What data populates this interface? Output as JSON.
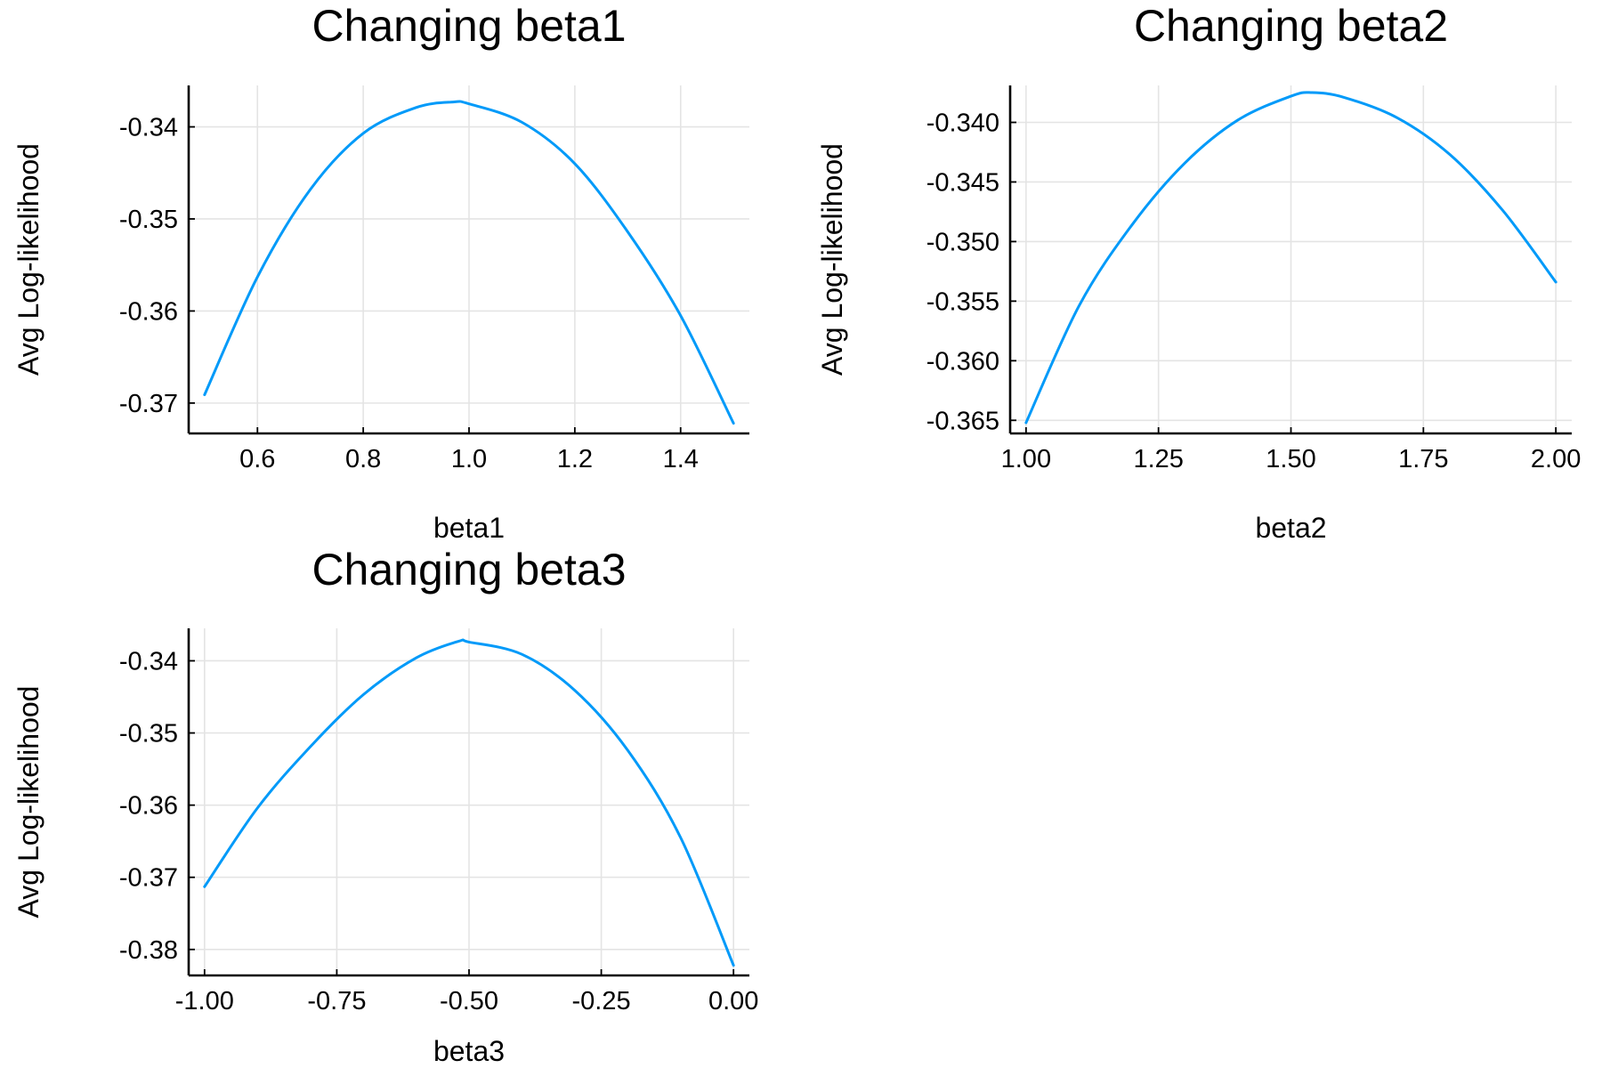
{
  "chart_data": [
    {
      "type": "line",
      "title": "Changing beta1",
      "xlabel": "beta1",
      "ylabel": "Avg Log-likelihood",
      "xlim": [
        0.47,
        1.53
      ],
      "ylim": [
        -0.3733,
        -0.3355
      ],
      "xticks": [
        0.6,
        0.8,
        1.0,
        1.2,
        1.4
      ],
      "xtick_labels": [
        "0.6",
        "0.8",
        "1.0",
        "1.2",
        "1.4"
      ],
      "yticks": [
        -0.37,
        -0.36,
        -0.35,
        -0.34
      ],
      "ytick_labels": [
        "-0.37",
        "-0.36",
        "-0.35",
        "-0.34"
      ],
      "grid": true,
      "series_color": "#009AF9",
      "series": [
        {
          "x": [
            0.5,
            0.6,
            0.7,
            0.8,
            0.9,
            0.97,
            1.0,
            1.1,
            1.2,
            1.3,
            1.4,
            1.5
          ],
          "values": [
            -0.3691,
            -0.3563,
            -0.3468,
            -0.3407,
            -0.3379,
            -0.3373,
            -0.3375,
            -0.3395,
            -0.344,
            -0.3514,
            -0.3605,
            -0.3722
          ]
        }
      ]
    },
    {
      "type": "line",
      "title": "Changing beta2",
      "xlabel": "beta2",
      "ylabel": "Avg Log-likelihood",
      "xlim": [
        0.97,
        2.03
      ],
      "ylim": [
        -0.3661,
        -0.3369
      ],
      "xticks": [
        1.0,
        1.25,
        1.5,
        1.75,
        2.0
      ],
      "xtick_labels": [
        "1.00",
        "1.25",
        "1.50",
        "1.75",
        "2.00"
      ],
      "yticks": [
        -0.365,
        -0.36,
        -0.355,
        -0.35,
        -0.345,
        -0.34
      ],
      "ytick_labels": [
        "-0.365",
        "-0.360",
        "-0.355",
        "-0.350",
        "-0.345",
        "-0.340"
      ],
      "grid": true,
      "series_color": "#009AF9",
      "series": [
        {
          "x": [
            1.0,
            1.1,
            1.2,
            1.3,
            1.4,
            1.5,
            1.54,
            1.6,
            1.7,
            1.8,
            1.9,
            2.0
          ],
          "values": [
            -0.3652,
            -0.3554,
            -0.3486,
            -0.3434,
            -0.3398,
            -0.3378,
            -0.3375,
            -0.3379,
            -0.3396,
            -0.3427,
            -0.3474,
            -0.3534
          ]
        }
      ]
    },
    {
      "type": "line",
      "title": "Changing beta3",
      "xlabel": "beta3",
      "ylabel": "Avg Log-likelihood",
      "xlim": [
        -1.03,
        0.03
      ],
      "ylim": [
        -0.3836,
        -0.3355
      ],
      "xticks": [
        -1.0,
        -0.75,
        -0.5,
        -0.25,
        0.0
      ],
      "xtick_labels": [
        "-1.00",
        "-0.75",
        "-0.50",
        "-0.25",
        "0.00"
      ],
      "yticks": [
        -0.38,
        -0.37,
        -0.36,
        -0.35,
        -0.34
      ],
      "ytick_labels": [
        "-0.38",
        "-0.37",
        "-0.36",
        "-0.35",
        "-0.34"
      ],
      "grid": true,
      "series_color": "#009AF9",
      "series": [
        {
          "x": [
            -1.0,
            -0.9,
            -0.8,
            -0.7,
            -0.6,
            -0.52,
            -0.5,
            -0.4,
            -0.3,
            -0.2,
            -0.1,
            0.0
          ],
          "values": [
            -0.3713,
            -0.3604,
            -0.3519,
            -0.3447,
            -0.3396,
            -0.3373,
            -0.3374,
            -0.3391,
            -0.3441,
            -0.3524,
            -0.3645,
            -0.3822
          ]
        }
      ]
    }
  ]
}
